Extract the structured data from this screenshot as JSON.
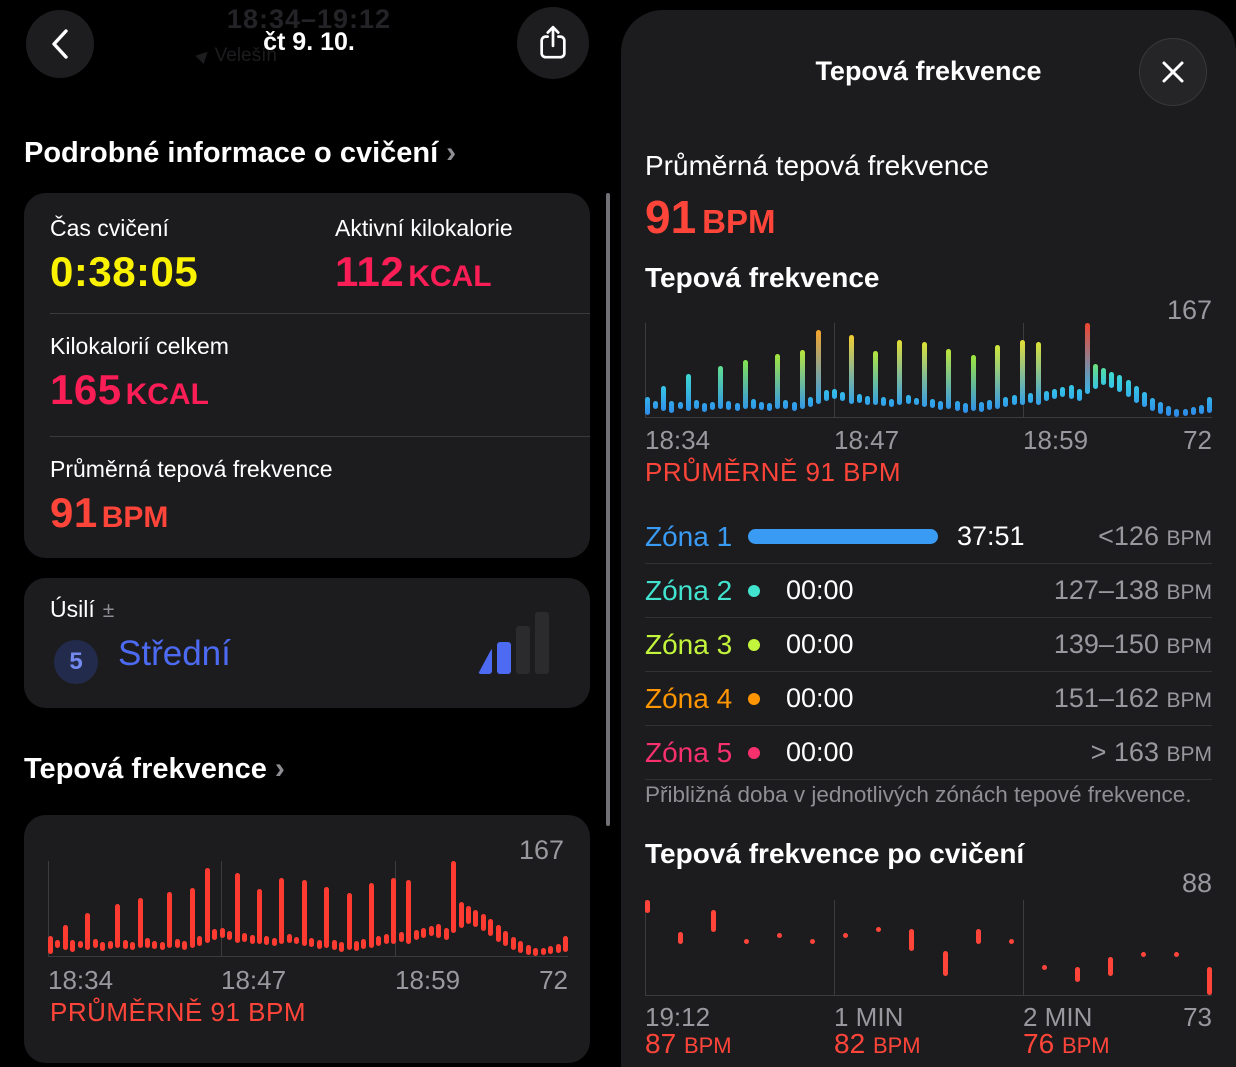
{
  "left_panel": {
    "nav": {
      "title": "čt 9. 10.",
      "ghost_time_range": "18:34–19:12",
      "ghost_location": "Velešín"
    },
    "details_heading": "Podrobné informace o cvičení",
    "heading_chevron": "›",
    "stats": {
      "exercise_time_label": "Čas cvičení",
      "exercise_time_value": "0:38:05",
      "active_kcal_label": "Aktivní kilokalorie",
      "active_kcal_value": "112",
      "active_kcal_unit": "KCAL",
      "total_kcal_label": "Kilokalorií celkem",
      "total_kcal_value": "165",
      "total_kcal_unit": "KCAL",
      "avg_hr_label": "Průměrná tepová frekvence",
      "avg_hr_value": "91",
      "avg_hr_unit": "BPM"
    },
    "effort": {
      "label": "Úsilí",
      "plusminus": "±",
      "rating": "5",
      "level": "Střední"
    },
    "hr_heading": "Tepová frekvence",
    "hr_chart": {
      "max_label": "167",
      "x_labels": [
        "18:34",
        "18:47",
        "18:59"
      ],
      "min_label": "72",
      "avg_label": "PRŮMĚRNĚ 91 BPM"
    }
  },
  "right_panel": {
    "title": "Tepová frekvence",
    "avg_hr_label": "Průměrná tepová frekvence",
    "avg_hr_value": "91",
    "avg_hr_unit": "BPM",
    "hr_section_heading": "Tepová frekvence",
    "hr_chart": {
      "max_label": "167",
      "x_labels": [
        "18:34",
        "18:47",
        "18:59"
      ],
      "min_label": "72",
      "avg_label": "PRŮMĚRNĚ 91 BPM"
    },
    "zones": [
      {
        "name": "Zóna 1",
        "color": "#3a9bf5",
        "duration": "37:51",
        "range": "<126",
        "unit": "BPM",
        "bar": true
      },
      {
        "name": "Zóna 2",
        "color": "#41e3ce",
        "duration": "00:00",
        "range": "127–138",
        "unit": "BPM",
        "bar": false
      },
      {
        "name": "Zóna 3",
        "color": "#c3f53c",
        "duration": "00:00",
        "range": "139–150",
        "unit": "BPM",
        "bar": false
      },
      {
        "name": "Zóna 4",
        "color": "#ff9500",
        "duration": "00:00",
        "range": "151–162",
        "unit": "BPM",
        "bar": false
      },
      {
        "name": "Zóna 5",
        "color": "#f8306e",
        "duration": "00:00",
        "range": "> 163",
        "unit": "BPM",
        "bar": false
      }
    ],
    "zones_caption": "Přibližná doba v jednotlivých zónách tepové frekvence.",
    "post_heading": "Tepová frekvence po cvičení",
    "post_chart": {
      "max_label": "88",
      "x_labels": [
        "19:12",
        "1 MIN",
        "2 MIN"
      ],
      "min_label": "73",
      "readings": [
        {
          "value": "87",
          "unit": "BPM"
        },
        {
          "value": "82",
          "unit": "BPM"
        },
        {
          "value": "76",
          "unit": "BPM"
        }
      ]
    }
  },
  "colors": {
    "hr_red": "#ff453a",
    "chart_red": "#fe3b30",
    "time_yellow": "#faf200",
    "kcal_pink": "#fb1d55",
    "effort_blue": "#4d6bf2"
  },
  "chart_data": [
    {
      "type": "bar",
      "title": "Tepová frekvence",
      "ylabel": "BPM",
      "ylim": [
        72,
        167
      ],
      "x_ticks": [
        "18:34",
        "18:47",
        "18:59"
      ],
      "x_end": "19:12",
      "avg_bpm": 91,
      "max_bpm": 167,
      "min_bpm": 72,
      "bars": [
        [
          74,
          92
        ],
        [
          80,
          88
        ],
        [
          78,
          103
        ],
        [
          76,
          88
        ],
        [
          80,
          87
        ],
        [
          78,
          115
        ],
        [
          80,
          89
        ],
        [
          77,
          86
        ],
        [
          79,
          87
        ],
        [
          80,
          124
        ],
        [
          79,
          88
        ],
        [
          78,
          86
        ],
        [
          80,
          130
        ],
        [
          80,
          90
        ],
        [
          79,
          87
        ],
        [
          78,
          86
        ],
        [
          80,
          136
        ],
        [
          80,
          89
        ],
        [
          78,
          87
        ],
        [
          80,
          140
        ],
        [
          82,
          92
        ],
        [
          85,
          160
        ],
        [
          88,
          99
        ],
        [
          90,
          100
        ],
        [
          88,
          97
        ],
        [
          85,
          155
        ],
        [
          86,
          95
        ],
        [
          84,
          93
        ],
        [
          84,
          139
        ],
        [
          83,
          92
        ],
        [
          82,
          90
        ],
        [
          84,
          150
        ],
        [
          85,
          94
        ],
        [
          84,
          91
        ],
        [
          82,
          148
        ],
        [
          81,
          90
        ],
        [
          79,
          88
        ],
        [
          80,
          141
        ],
        [
          78,
          88
        ],
        [
          76,
          86
        ],
        [
          78,
          135
        ],
        [
          77,
          87
        ],
        [
          79,
          89
        ],
        [
          80,
          145
        ],
        [
          82,
          92
        ],
        [
          84,
          94
        ],
        [
          84,
          150
        ],
        [
          86,
          96
        ],
        [
          84,
          148
        ],
        [
          88,
          98
        ],
        [
          90,
          100
        ],
        [
          92,
          102
        ],
        [
          90,
          104
        ],
        [
          88,
          100
        ],
        [
          95,
          167
        ],
        [
          100,
          126
        ],
        [
          104,
          122
        ],
        [
          101,
          118
        ],
        [
          97,
          114
        ],
        [
          92,
          109
        ],
        [
          86,
          103
        ],
        [
          82,
          97
        ],
        [
          78,
          91
        ],
        [
          75,
          87
        ],
        [
          73,
          83
        ],
        [
          72,
          80
        ],
        [
          73,
          80
        ],
        [
          74,
          82
        ],
        [
          75,
          84
        ],
        [
          76,
          92
        ]
      ],
      "color_scale": [
        [
          72,
          "#2e86e8"
        ],
        [
          100,
          "#35c2ea"
        ],
        [
          118,
          "#3fdccb"
        ],
        [
          132,
          "#8fe53c"
        ],
        [
          146,
          "#d8e838"
        ],
        [
          155,
          "#f2cf30"
        ],
        [
          161,
          "#f59b2a"
        ],
        [
          167,
          "#f04430"
        ]
      ]
    },
    {
      "type": "bar",
      "title": "Tepová frekvence po cvičení",
      "ylabel": "BPM",
      "ylim": [
        73,
        88
      ],
      "x_ticks": [
        "19:12",
        "1 MIN",
        "2 MIN"
      ],
      "minute_readings": [
        87,
        82,
        76
      ],
      "bars": [
        [
          86,
          88
        ],
        [
          81,
          83
        ],
        [
          83,
          86.5
        ],
        [
          81,
          81.8
        ],
        [
          82,
          82.8
        ],
        [
          81,
          81.8
        ],
        [
          82,
          82.8
        ],
        [
          83,
          83.8
        ],
        [
          80,
          83.5
        ],
        [
          76,
          80
        ],
        [
          81,
          83.5
        ],
        [
          81,
          81.8
        ],
        [
          77,
          77.8
        ],
        [
          75,
          77.5
        ],
        [
          76,
          79
        ],
        [
          79,
          79.8
        ],
        [
          79,
          79.8
        ],
        [
          73,
          77.5
        ]
      ]
    }
  ]
}
